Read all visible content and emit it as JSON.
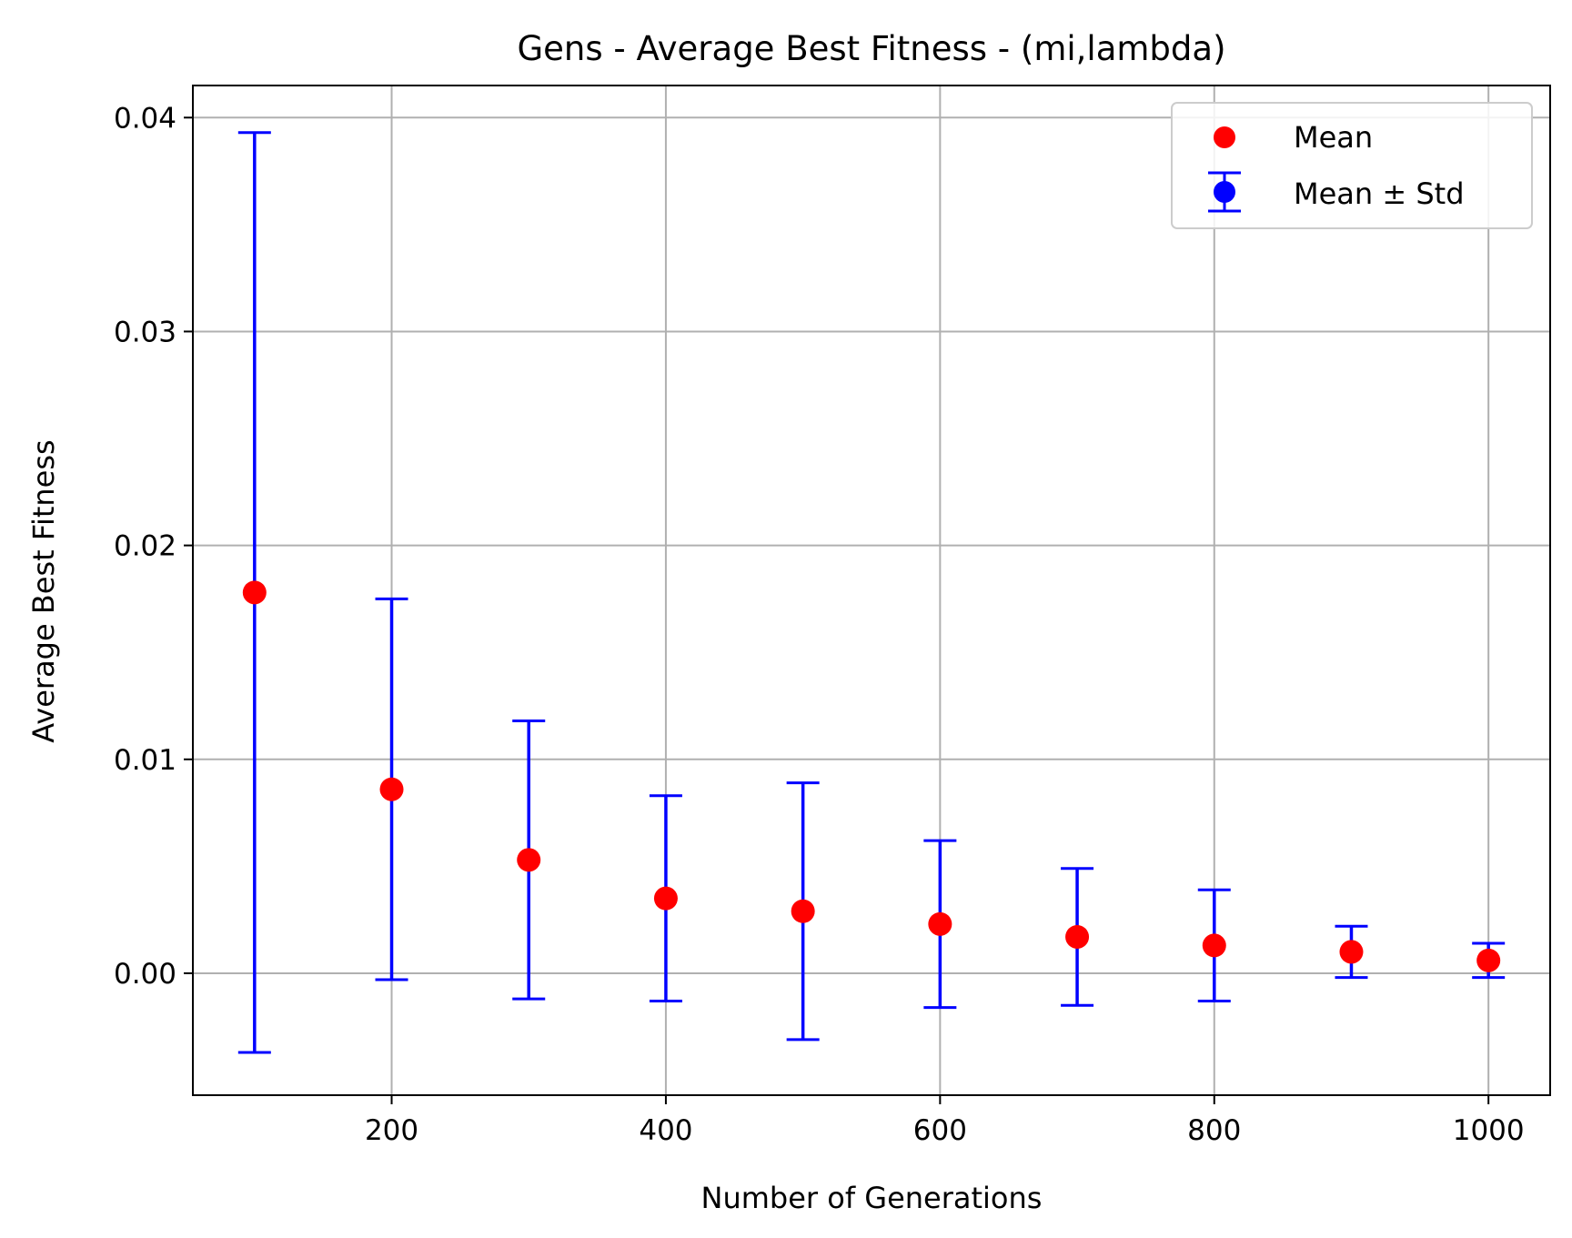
{
  "chart_data": {
    "type": "scatter",
    "title": "Gens - Average Best Fitness - (mi,lambda)",
    "xlabel": "Number of Generations",
    "ylabel": "Average Best Fitness",
    "xlim": [
      55,
      1045
    ],
    "ylim": [
      -0.0057,
      0.0415
    ],
    "x_ticks": [
      200,
      400,
      600,
      800,
      1000
    ],
    "x_tick_labels": [
      "200",
      "400",
      "600",
      "800",
      "1000"
    ],
    "y_ticks": [
      0.0,
      0.01,
      0.02,
      0.03,
      0.04
    ],
    "y_tick_labels": [
      "0.00",
      "0.01",
      "0.02",
      "0.03",
      "0.04"
    ],
    "grid": true,
    "legend_position": "top-right",
    "series": [
      {
        "name": "Mean",
        "kind": "points",
        "color": "#ff0000",
        "x": [
          100,
          200,
          300,
          400,
          500,
          600,
          700,
          800,
          900,
          1000
        ],
        "y": [
          0.0178,
          0.0086,
          0.0053,
          0.0035,
          0.0029,
          0.0023,
          0.0017,
          0.0013,
          0.001,
          0.0006
        ]
      },
      {
        "name": "Mean ± Std",
        "kind": "errorbar",
        "color": "#0000ff",
        "x": [
          100,
          200,
          300,
          400,
          500,
          600,
          700,
          800,
          900,
          1000
        ],
        "y": [
          0.0178,
          0.0086,
          0.0053,
          0.0035,
          0.0029,
          0.0023,
          0.0017,
          0.0013,
          0.001,
          0.0006
        ],
        "std": [
          0.0215,
          0.0089,
          0.0065,
          0.0048,
          0.006,
          0.0039,
          0.0032,
          0.0026,
          0.0012,
          0.0008
        ]
      }
    ]
  }
}
